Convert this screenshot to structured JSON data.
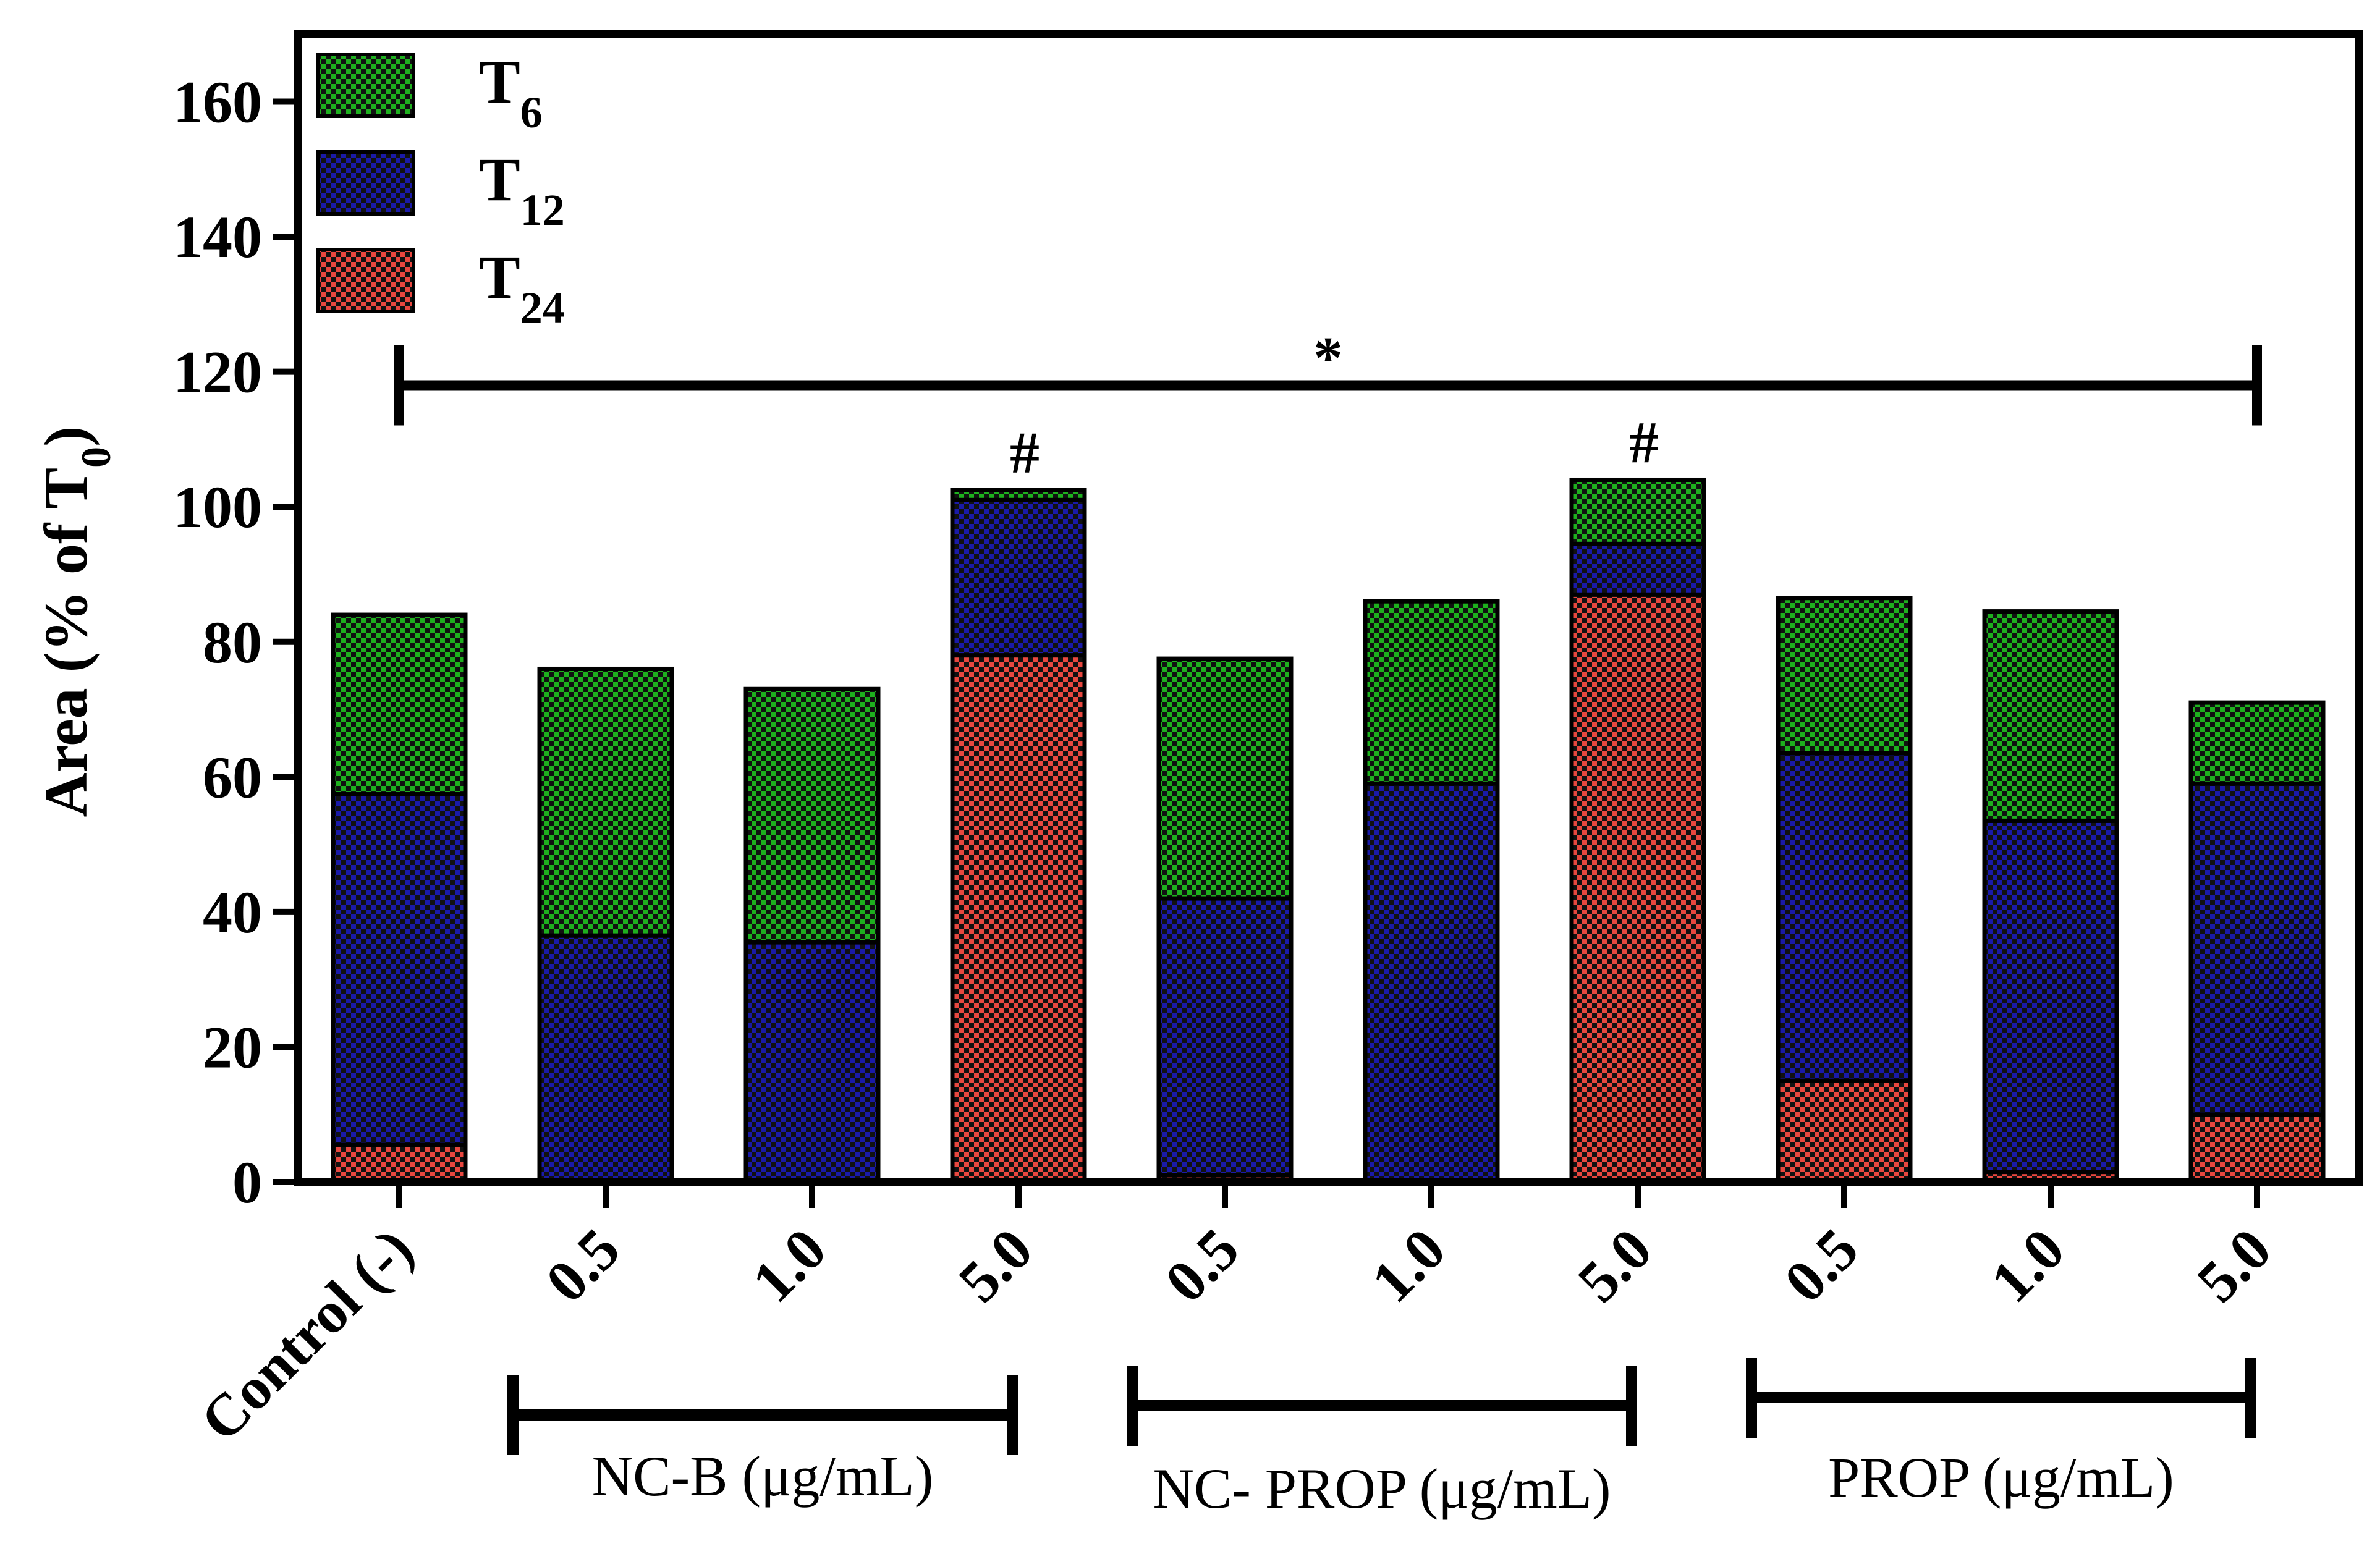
{
  "chart_data": {
    "type": "bar",
    "stacked": true,
    "title": "",
    "xlabel": "",
    "ylabel_parts": [
      "Area (% of T",
      "0",
      ")"
    ],
    "ylim": [
      0,
      170
    ],
    "yticks": [
      0,
      20,
      40,
      60,
      80,
      100,
      120,
      140,
      160
    ],
    "categories": [
      "Control (-)",
      "0.5",
      "1.0",
      "5.0",
      "0.5",
      "1.0",
      "5.0",
      "0.5",
      "1.0",
      "5.0"
    ],
    "series": [
      {
        "name": "T24",
        "label_main": "T",
        "label_sub": "24",
        "color": "#e8473f",
        "values": [
          5.5,
          0,
          0,
          78,
          1,
          0,
          87,
          15,
          1.5,
          10
        ]
      },
      {
        "name": "T12",
        "label_main": "T",
        "label_sub": "12",
        "color": "#1a1aa8",
        "values": [
          52,
          36.5,
          35.5,
          23,
          41,
          59,
          7.5,
          48.5,
          52,
          49
        ]
      },
      {
        "name": "T6",
        "label_main": "T",
        "label_sub": "6",
        "color": "#1eb01e",
        "values": [
          26.5,
          39.5,
          37.5,
          1.5,
          35.5,
          27,
          9.5,
          23,
          31,
          12
        ]
      }
    ],
    "totals": [
      84,
      76,
      73,
      102.5,
      77.5,
      86,
      104,
      86.5,
      84.5,
      71
    ],
    "groups": [
      {
        "label": "NC-B (μg/mL)",
        "start": 1,
        "end": 3
      },
      {
        "label": "NC- PROP (μg/mL)",
        "start": 4,
        "end": 6
      },
      {
        "label": "PROP (μg/mL)",
        "start": 7,
        "end": 9
      }
    ],
    "annotations": {
      "significance_bar": {
        "label": "*",
        "from": 0,
        "to": 9,
        "y": 118
      },
      "hash_marks": [
        {
          "label": "#",
          "bar": 3
        },
        {
          "label": "#",
          "bar": 6
        }
      ]
    },
    "legend": {
      "position": "top-left",
      "order": [
        "T6",
        "T12",
        "T24"
      ]
    }
  }
}
